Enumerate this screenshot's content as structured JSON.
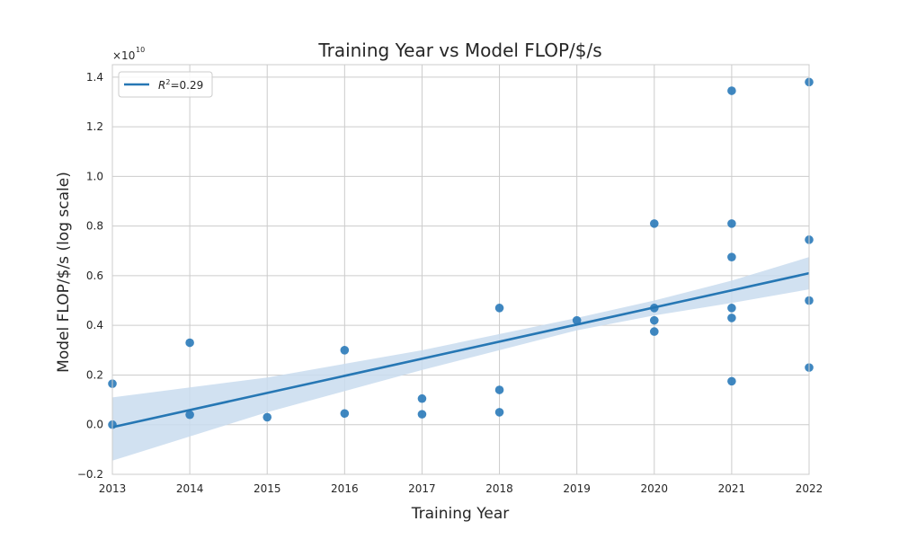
{
  "chart_data": {
    "type": "scatter",
    "title": "Training Year vs Model FLOP/$/s",
    "xlabel": "Training Year",
    "ylabel": "Model FLOP/$/s (log scale)",
    "y_scale_label": "×10",
    "y_scale_exponent": "10",
    "xlim": [
      2013,
      2022
    ],
    "ylim": [
      -0.2,
      1.45
    ],
    "x_ticks": [
      2013,
      2014,
      2015,
      2016,
      2017,
      2018,
      2019,
      2020,
      2021,
      2022
    ],
    "y_ticks": [
      -0.2,
      0.0,
      0.2,
      0.4,
      0.6,
      0.8,
      1.0,
      1.2,
      1.4
    ],
    "y_tick_labels": [
      "−0.2",
      "0.0",
      "0.2",
      "0.4",
      "0.6",
      "0.8",
      "1.0",
      "1.2",
      "1.4"
    ],
    "x_tick_labels": [
      "2013",
      "2014",
      "2015",
      "2016",
      "2017",
      "2018",
      "2019",
      "2020",
      "2021",
      "2022"
    ],
    "grid": true,
    "legend_position": "top-left",
    "legend": [
      {
        "label_prefix": "R",
        "label_sup": "2",
        "label_suffix": "=0.29"
      }
    ],
    "points": [
      {
        "x": 2013,
        "y": 0.165
      },
      {
        "x": 2013,
        "y": 0.0
      },
      {
        "x": 2014,
        "y": 0.33
      },
      {
        "x": 2014,
        "y": 0.04
      },
      {
        "x": 2015,
        "y": 0.03
      },
      {
        "x": 2016,
        "y": 0.3
      },
      {
        "x": 2016,
        "y": 0.045
      },
      {
        "x": 2017,
        "y": 0.105
      },
      {
        "x": 2017,
        "y": 0.042
      },
      {
        "x": 2018,
        "y": 0.47
      },
      {
        "x": 2018,
        "y": 0.14
      },
      {
        "x": 2018,
        "y": 0.05
      },
      {
        "x": 2019,
        "y": 0.42
      },
      {
        "x": 2020,
        "y": 0.81
      },
      {
        "x": 2020,
        "y": 0.47
      },
      {
        "x": 2020,
        "y": 0.42
      },
      {
        "x": 2020,
        "y": 0.375
      },
      {
        "x": 2021,
        "y": 1.345
      },
      {
        "x": 2021,
        "y": 0.81
      },
      {
        "x": 2021,
        "y": 0.675
      },
      {
        "x": 2021,
        "y": 0.47
      },
      {
        "x": 2021,
        "y": 0.43
      },
      {
        "x": 2021,
        "y": 0.175
      },
      {
        "x": 2022,
        "y": 1.38
      },
      {
        "x": 2022,
        "y": 0.745
      },
      {
        "x": 2022,
        "y": 0.5
      },
      {
        "x": 2022,
        "y": 0.23
      }
    ],
    "regression": {
      "x": [
        2013,
        2022
      ],
      "y": [
        -0.01,
        0.61
      ]
    },
    "confidence_band": {
      "x": [
        2013,
        2015,
        2017,
        2019,
        2020,
        2021,
        2022
      ],
      "upper": [
        0.11,
        0.19,
        0.3,
        0.43,
        0.5,
        0.58,
        0.675
      ],
      "lower": [
        -0.145,
        0.05,
        0.22,
        0.38,
        0.44,
        0.49,
        0.545
      ]
    },
    "colors": {
      "point": "#2a7ab9",
      "line": "#2677b4",
      "band": "#c9dcee",
      "grid": "#cccccc",
      "axis": "#cccccc"
    }
  }
}
